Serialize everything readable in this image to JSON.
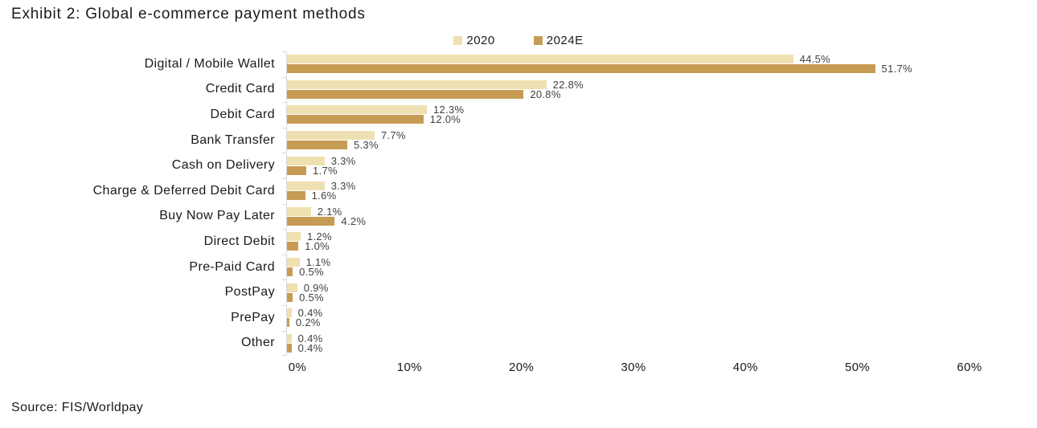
{
  "title": "Exhibit 2: Global e-commerce payment methods",
  "source": "Source: FIS/Worldpay",
  "colors": {
    "series_2020": "#EFE0B1",
    "series_2024e": "#C69C54",
    "axis_line": "#D9D9D9",
    "data_label": "#3F3F3F",
    "text": "#1A1A1A"
  },
  "chart_data": {
    "type": "bar",
    "orientation": "horizontal",
    "title": "Exhibit 2: Global e-commerce payment methods",
    "categories": [
      "Digital / Mobile Wallet",
      "Credit Card",
      "Debit Card",
      "Bank Transfer",
      "Cash on Delivery",
      "Charge & Deferred Debit Card",
      "Buy Now Pay Later",
      "Direct Debit",
      "Pre-Paid Card",
      "PostPay",
      "PrePay",
      "Other"
    ],
    "series": [
      {
        "name": "2020",
        "color": "#EFE0B1",
        "values": [
          44.5,
          22.8,
          12.3,
          7.7,
          3.3,
          3.3,
          2.1,
          1.2,
          1.1,
          0.9,
          0.4,
          0.4
        ],
        "labels": [
          "44.5%",
          "22.8%",
          "12.3%",
          "7.7%",
          "3.3%",
          "3.3%",
          "2.1%",
          "1.2%",
          "1.1%",
          "0.9%",
          "0.4%",
          "0.4%"
        ]
      },
      {
        "name": "2024E",
        "color": "#C69C54",
        "values": [
          51.7,
          20.8,
          12.0,
          5.3,
          1.7,
          1.6,
          4.2,
          1.0,
          0.5,
          0.5,
          0.2,
          0.4
        ],
        "labels": [
          "51.7%",
          "20.8%",
          "12.0%",
          "5.3%",
          "1.7%",
          "1.6%",
          "4.2%",
          "1.0%",
          "0.5%",
          "0.5%",
          "0.2%",
          "0.4%"
        ]
      }
    ],
    "xlim": [
      0,
      60
    ],
    "x_ticks": [
      "0%",
      "10%",
      "20%",
      "30%",
      "40%",
      "50%",
      "60%"
    ],
    "grid": false,
    "legend_position": "top-center",
    "data_labels": true
  }
}
